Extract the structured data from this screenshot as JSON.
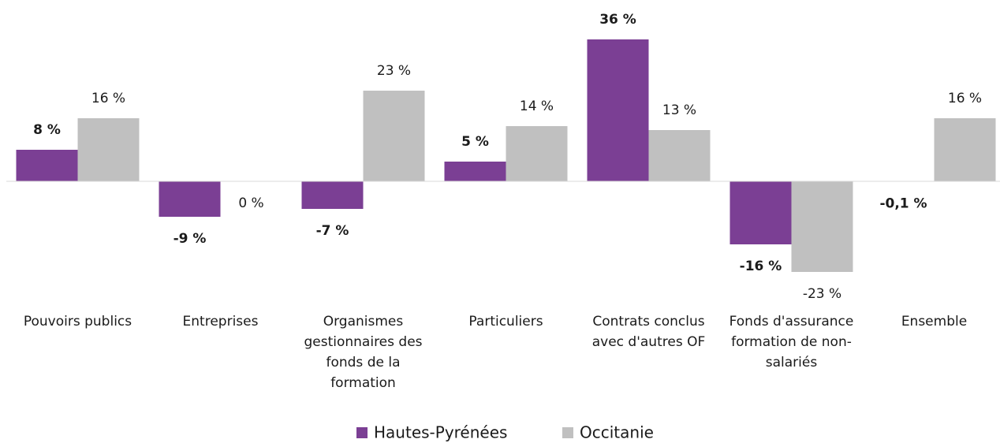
{
  "chart_data": {
    "type": "bar",
    "categories": [
      "Pouvoirs publics",
      "Entreprises",
      "Organismes gestionnaires des fonds de la formation",
      "Particuliers",
      "Contrats conclus avec d'autres OF",
      "Fonds d'assurance formation de non-salariés",
      "Ensemble"
    ],
    "series": [
      {
        "name": "Hautes-Pyrénées",
        "color": "#7b3f94",
        "values": [
          8,
          -9,
          -7,
          5,
          36,
          -16,
          -0.1
        ],
        "value_labels": [
          "8 %",
          "-9 %",
          "-7 %",
          "5 %",
          "36 %",
          "-16 %",
          "-0,1 %"
        ]
      },
      {
        "name": "Occitanie",
        "color": "#c0c0c0",
        "values": [
          16,
          0,
          23,
          14,
          13,
          -23,
          16
        ],
        "value_labels": [
          "16 %",
          "0 %",
          "23 %",
          "14 %",
          "13 %",
          "-23 %",
          "16 %"
        ]
      }
    ],
    "legend": "bottom"
  }
}
